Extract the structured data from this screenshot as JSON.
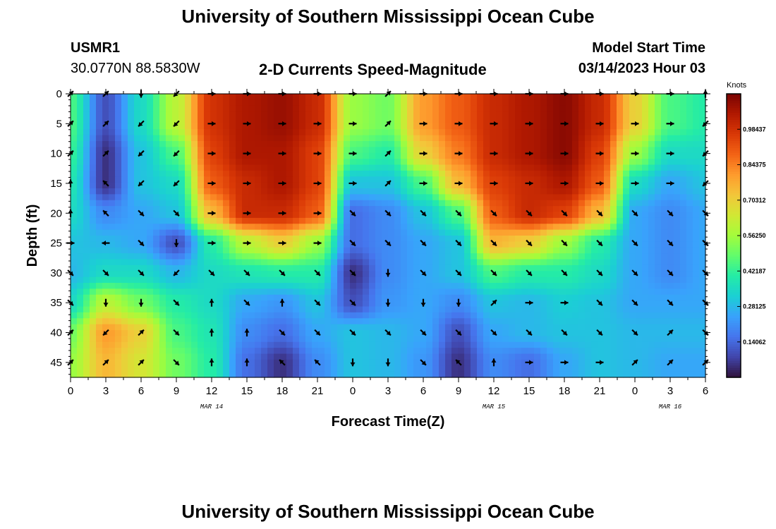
{
  "header": {
    "title": "University of Southern Mississippi Ocean Cube",
    "station_id": "USMR1",
    "station_coords": "30.0770N  88.5830W",
    "subtitle": "2-D Currents Speed-Magnitude",
    "model_label": "Model Start Time",
    "model_time": "03/14/2023 Hour 03"
  },
  "footer": {
    "title": "University of Southern Mississippi Ocean Cube"
  },
  "chart_data": {
    "type": "heatmap",
    "title": "2-D Currents Speed-Magnitude",
    "xlabel": "Forecast Time(Z)",
    "ylabel": "Depth (ft)",
    "x_ticks": [
      "0",
      "3",
      "6",
      "9",
      "12",
      "15",
      "18",
      "21",
      "0",
      "3",
      "6",
      "9",
      "12",
      "15",
      "18",
      "21",
      "0",
      "3",
      "6"
    ],
    "date_labels": [
      {
        "label": "MAR 14",
        "at_tick": 4
      },
      {
        "label": "MAR 15",
        "at_tick": 12
      },
      {
        "label": "MAR 16",
        "at_tick": 17
      }
    ],
    "y_ticks": [
      "0",
      "5",
      "10",
      "15",
      "20",
      "25",
      "30",
      "35",
      "40",
      "45"
    ],
    "ylim": [
      0,
      47.5
    ],
    "y_inverted": true,
    "colorbar": {
      "title": "Knots",
      "ticks": [
        "0.98437",
        "0.84375",
        "0.70312",
        "0.56250",
        "0.42187",
        "0.28125",
        "0.14062"
      ],
      "range": [
        0,
        1.125
      ],
      "colors": [
        "#30123b",
        "#4145ab",
        "#4675ed",
        "#39a2fc",
        "#1bcfd4",
        "#24eca6",
        "#61fc6c",
        "#a4fc3b",
        "#d1e834",
        "#f3c63a",
        "#fe9b2d",
        "#f36315",
        "#d93806",
        "#b11901",
        "#7a0403"
      ]
    },
    "grid_hours": [
      0,
      3,
      6,
      9,
      12,
      15,
      18,
      21,
      24,
      27,
      30,
      33,
      36,
      39,
      42,
      45,
      48,
      51,
      54
    ],
    "grid_depths": [
      0,
      5,
      10,
      15,
      20,
      25,
      30,
      35,
      40,
      45
    ],
    "speed_knots": [
      [
        0.45,
        0.1,
        0.35,
        0.6,
        0.98,
        1.05,
        1.08,
        1.0,
        0.55,
        0.5,
        0.8,
        0.9,
        1.0,
        1.05,
        1.1,
        1.0,
        0.7,
        0.45,
        0.4
      ],
      [
        0.45,
        0.1,
        0.35,
        0.6,
        0.98,
        1.05,
        1.08,
        1.0,
        0.55,
        0.5,
        0.8,
        0.9,
        1.0,
        1.05,
        1.1,
        1.0,
        0.7,
        0.45,
        0.4
      ],
      [
        0.42,
        0.05,
        0.3,
        0.45,
        0.95,
        1.05,
        1.05,
        0.95,
        0.45,
        0.4,
        0.7,
        0.85,
        1.0,
        1.05,
        1.1,
        0.95,
        0.55,
        0.35,
        0.35
      ],
      [
        0.38,
        0.05,
        0.3,
        0.35,
        0.9,
        1.0,
        1.05,
        0.95,
        0.3,
        0.3,
        0.45,
        0.75,
        0.95,
        1.0,
        1.05,
        0.9,
        0.35,
        0.25,
        0.3
      ],
      [
        0.35,
        0.2,
        0.25,
        0.3,
        0.75,
        1.0,
        1.0,
        0.9,
        0.15,
        0.2,
        0.3,
        0.45,
        0.9,
        1.0,
        0.95,
        0.75,
        0.25,
        0.2,
        0.25
      ],
      [
        0.3,
        0.28,
        0.25,
        0.1,
        0.4,
        0.6,
        0.7,
        0.55,
        0.15,
        0.2,
        0.25,
        0.3,
        0.75,
        0.7,
        0.55,
        0.4,
        0.25,
        0.2,
        0.25
      ],
      [
        0.28,
        0.35,
        0.35,
        0.28,
        0.35,
        0.38,
        0.4,
        0.4,
        0.05,
        0.2,
        0.25,
        0.3,
        0.45,
        0.4,
        0.4,
        0.35,
        0.25,
        0.2,
        0.25
      ],
      [
        0.35,
        0.6,
        0.5,
        0.4,
        0.35,
        0.25,
        0.22,
        0.3,
        0.1,
        0.22,
        0.25,
        0.2,
        0.3,
        0.28,
        0.32,
        0.3,
        0.25,
        0.25,
        0.25
      ],
      [
        0.5,
        0.8,
        0.7,
        0.45,
        0.38,
        0.2,
        0.15,
        0.25,
        0.3,
        0.28,
        0.25,
        0.1,
        0.25,
        0.28,
        0.3,
        0.3,
        0.28,
        0.28,
        0.28
      ],
      [
        0.55,
        0.75,
        0.65,
        0.5,
        0.4,
        0.15,
        0.05,
        0.2,
        0.3,
        0.28,
        0.22,
        0.05,
        0.2,
        0.15,
        0.25,
        0.3,
        0.28,
        0.25,
        0.25
      ]
    ],
    "direction_deg": [
      [
        45,
        45,
        180,
        225,
        90,
        90,
        90,
        90,
        90,
        45,
        90,
        90,
        90,
        90,
        90,
        90,
        90,
        90,
        0
      ],
      [
        45,
        45,
        225,
        225,
        90,
        90,
        90,
        90,
        90,
        45,
        90,
        90,
        90,
        90,
        90,
        90,
        90,
        90,
        225
      ],
      [
        45,
        45,
        225,
        225,
        90,
        90,
        90,
        90,
        90,
        45,
        90,
        90,
        90,
        90,
        90,
        90,
        90,
        90,
        225
      ],
      [
        0,
        315,
        225,
        225,
        90,
        90,
        90,
        90,
        90,
        45,
        90,
        90,
        90,
        90,
        90,
        90,
        90,
        90,
        225
      ],
      [
        0,
        315,
        135,
        135,
        90,
        90,
        90,
        90,
        135,
        135,
        135,
        135,
        135,
        135,
        135,
        135,
        135,
        135,
        135
      ],
      [
        90,
        270,
        135,
        180,
        90,
        90,
        90,
        90,
        135,
        135,
        135,
        135,
        135,
        135,
        135,
        135,
        135,
        135,
        135
      ],
      [
        135,
        135,
        135,
        225,
        135,
        135,
        135,
        135,
        135,
        180,
        135,
        135,
        135,
        135,
        135,
        135,
        135,
        135,
        135
      ],
      [
        135,
        180,
        180,
        135,
        0,
        135,
        0,
        135,
        135,
        180,
        180,
        180,
        45,
        90,
        90,
        135,
        135,
        135,
        135
      ],
      [
        45,
        225,
        45,
        135,
        0,
        0,
        135,
        135,
        135,
        135,
        135,
        135,
        135,
        135,
        135,
        135,
        135,
        45,
        135
      ],
      [
        45,
        45,
        45,
        135,
        0,
        0,
        315,
        315,
        180,
        180,
        135,
        315,
        0,
        90,
        90,
        90,
        45,
        45,
        45
      ]
    ]
  }
}
